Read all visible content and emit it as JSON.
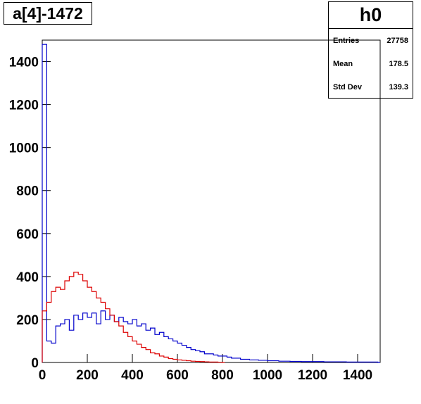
{
  "chart_data": {
    "type": "histogram",
    "title": "a[4]-1472",
    "xlim": [
      0,
      1500
    ],
    "ylim": [
      0,
      1500
    ],
    "x_ticks": [
      "0",
      "200",
      "400",
      "600",
      "800",
      "1000",
      "1200",
      "1400"
    ],
    "y_ticks": [
      "0",
      "200",
      "400",
      "600",
      "800",
      "1000",
      "1200",
      "1400"
    ],
    "stats": {
      "name": "h0",
      "entries_label": "Entries",
      "entries": "27758",
      "mean_label": "Mean",
      "mean": "178.5",
      "stddev_label": "Std Dev",
      "stddev": "139.3"
    },
    "series": [
      {
        "color": "#0000cc",
        "x": [
          0,
          20,
          40,
          60,
          80,
          100,
          120,
          140,
          160,
          180,
          200,
          220,
          240,
          260,
          280,
          300,
          320,
          340,
          360,
          380,
          400,
          420,
          440,
          460,
          480,
          500,
          520,
          540,
          560,
          580,
          600,
          620,
          640,
          660,
          680,
          700,
          720,
          740,
          760,
          780,
          800,
          820,
          840,
          860,
          880,
          900,
          920,
          940,
          960,
          980,
          1000,
          1050,
          1100,
          1150,
          1200,
          1250,
          1300,
          1350,
          1400,
          1450,
          1490
        ],
        "values": [
          1480,
          100,
          90,
          170,
          180,
          200,
          150,
          220,
          200,
          230,
          210,
          230,
          180,
          240,
          200,
          220,
          190,
          210,
          190,
          180,
          200,
          170,
          180,
          150,
          160,
          130,
          140,
          120,
          110,
          100,
          90,
          80,
          70,
          60,
          55,
          50,
          40,
          40,
          35,
          30,
          30,
          25,
          20,
          20,
          15,
          15,
          12,
          12,
          10,
          10,
          8,
          6,
          5,
          4,
          4,
          3,
          3,
          2,
          2,
          2,
          0
        ]
      },
      {
        "color": "#dd0000",
        "x": [
          0,
          20,
          40,
          60,
          80,
          100,
          120,
          140,
          160,
          180,
          200,
          220,
          240,
          260,
          280,
          300,
          320,
          340,
          360,
          380,
          400,
          420,
          440,
          460,
          480,
          500,
          520,
          540,
          560,
          580,
          600,
          620,
          640,
          660,
          680,
          700,
          720,
          740,
          760,
          780,
          800
        ],
        "values": [
          240,
          280,
          330,
          350,
          340,
          380,
          400,
          420,
          410,
          380,
          350,
          330,
          300,
          280,
          250,
          220,
          190,
          170,
          140,
          120,
          100,
          85,
          70,
          60,
          45,
          40,
          30,
          25,
          18,
          15,
          12,
          10,
          8,
          6,
          5,
          4,
          3,
          2,
          2,
          1,
          0
        ]
      }
    ]
  }
}
